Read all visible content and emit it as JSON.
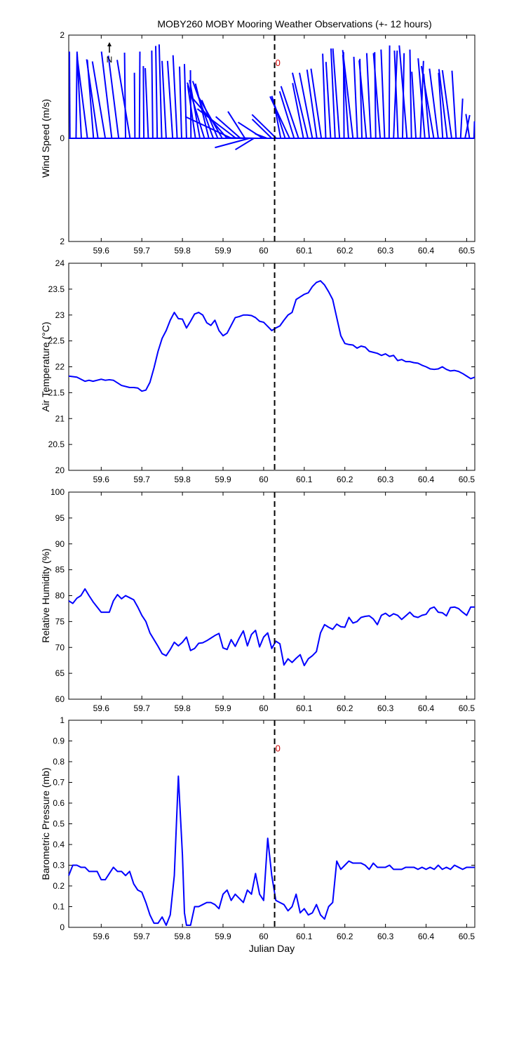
{
  "title": "MOBY260 MOBY Mooring Weather Observations (+- 12 hours)",
  "north_label": "N",
  "colors": {
    "series": "#0000ff",
    "axis": "#000000",
    "marker_text": "#cc0000",
    "cursor": "#000000"
  },
  "chart_data": [
    {
      "id": "wind",
      "type": "quiver",
      "xlabel": "",
      "ylabel": "Wind Speed (m/s)",
      "xlim": [
        59.52,
        60.52
      ],
      "ylim": [
        -2,
        2
      ],
      "yticks": [
        {
          "value": 2,
          "label": "2"
        },
        {
          "value": 0,
          "label": "0"
        },
        {
          "value": -2,
          "label": "2"
        }
      ],
      "marker_label": "0",
      "marker_pos": {
        "x": 60.035,
        "y": 1.4
      },
      "t": [
        59.523,
        59.538,
        59.551,
        59.566,
        59.581,
        59.592,
        59.61,
        59.626,
        59.643,
        59.66,
        59.671,
        59.683,
        59.694,
        59.705,
        59.716,
        59.727,
        59.738,
        59.749,
        59.76,
        59.776,
        59.787,
        59.798,
        59.81,
        59.821,
        59.832,
        59.843,
        59.854,
        59.865,
        59.876,
        59.887,
        59.898,
        59.91,
        59.921,
        59.932,
        59.943,
        59.954,
        59.965,
        59.976,
        59.987,
        59.998,
        60.009,
        60.02,
        60.031,
        60.042,
        60.053,
        60.064,
        60.075,
        60.086,
        60.098,
        60.109,
        60.12,
        60.131,
        60.142,
        60.153,
        60.165,
        60.176,
        60.187,
        60.198,
        60.209,
        60.22,
        60.231,
        60.242,
        60.253,
        60.264,
        60.276,
        60.287,
        60.298,
        60.309,
        60.32,
        60.331,
        60.342,
        60.353,
        60.364,
        60.375,
        60.386,
        60.397,
        60.408,
        60.419,
        60.43,
        60.441,
        60.452,
        60.463,
        60.474,
        60.485,
        60.496,
        60.507,
        60.518
      ],
      "u": [
        -0.01,
        0.02,
        -0.08,
        -0.2,
        -0.12,
        -0.22,
        -0.25,
        -0.2,
        -0.2,
        -0.02,
        -0.25,
        -0.01,
        0.01,
        -0.01,
        -0.06,
        -0.02,
        -0.03,
        -0.05,
        -0.08,
        -0.1,
        -0.08,
        -0.04,
        -0.04,
        -0.01,
        -0.15,
        -0.2,
        -0.33,
        -0.26,
        -0.4,
        -0.31,
        -0.47,
        -0.7,
        -0.9,
        -0.75,
        -0.48,
        -0.33,
        -0.67,
        -0.36,
        -0.61,
        -0.48,
        -0.24,
        -0.38,
        -0.47,
        -0.14,
        -0.26,
        -0.38,
        -0.28,
        -0.34,
        -0.21,
        -0.3,
        -0.25,
        -0.19,
        -0.2,
        -0.06,
        -0.09,
        -0.08,
        -0.13,
        -0.01,
        -0.11,
        -0.2,
        -0.07,
        -0.04,
        -0.14,
        -0.08,
        -0.02,
        -0.13,
        -0.07,
        0.01,
        0.07,
        -0.07,
        0.03,
        -0.15,
        -0.03,
        -0.08,
        0.06,
        -0.13,
        -0.11,
        -0.24,
        -0.17,
        -0.08,
        -0.16,
        -0.18,
        -0.08,
        0.04,
        0.09,
        -0.07,
        0.01
      ],
      "v": [
        1.68,
        1.68,
        1.64,
        1.59,
        1.52,
        1.53,
        1.49,
        1.68,
        1.6,
        1.66,
        1.52,
        1.27,
        1.68,
        1.4,
        1.36,
        1.7,
        1.79,
        1.82,
        1.5,
        1.5,
        1.61,
        1.39,
        1.44,
        1.32,
        1.03,
        1.13,
        1.08,
        1.06,
        1.11,
        0.74,
        0.82,
        0.81,
        0.42,
        0.57,
        0.42,
        0.52,
        -0.18,
        -0.22,
        0.01,
        0.31,
        0.09,
        0.37,
        0.46,
        0.74,
        0.82,
        0.81,
        0.91,
        1.01,
        1.07,
        1.27,
        1.27,
        1.33,
        1.35,
        1.64,
        1.48,
        1.74,
        1.74,
        1.67,
        1.62,
        1.71,
        1.58,
        1.54,
        1.51,
        1.65,
        1.67,
        1.65,
        1.72,
        1.8,
        1.7,
        1.7,
        1.65,
        1.8,
        1.72,
        1.29,
        1.5,
        1.55,
        1.25,
        1.4,
        1.35,
        1.27,
        1.34,
        1.32,
        1.31,
        0.77,
        0.45,
        0.47,
        0.33
      ]
    },
    {
      "id": "air",
      "type": "line",
      "xlabel": "",
      "ylabel": "Air Temperature (°C)",
      "xlim": [
        59.52,
        60.52
      ],
      "ylim": [
        20,
        24
      ],
      "ytick_labels": [
        "20",
        "20.5",
        "21",
        "21.5",
        "22",
        "22.5",
        "23",
        "23.5",
        "24"
      ],
      "x": [
        59.52,
        59.54,
        59.56,
        59.57,
        59.58,
        59.6,
        59.61,
        59.62,
        59.63,
        59.65,
        59.67,
        59.68,
        59.69,
        59.7,
        59.71,
        59.72,
        59.73,
        59.74,
        59.75,
        59.76,
        59.77,
        59.78,
        59.79,
        59.8,
        59.81,
        59.82,
        59.83,
        59.84,
        59.85,
        59.86,
        59.87,
        59.88,
        59.89,
        59.9,
        59.91,
        59.92,
        59.93,
        59.94,
        59.95,
        59.96,
        59.97,
        59.98,
        59.99,
        60,
        60.01,
        60.02,
        60.03,
        60.04,
        60.05,
        60.06,
        60.07,
        60.08,
        60.09,
        60.1,
        60.11,
        60.12,
        60.13,
        60.14,
        60.15,
        60.16,
        60.17,
        60.18,
        60.19,
        60.2,
        60.21,
        60.22,
        60.23,
        60.24,
        60.25,
        60.26,
        60.27,
        60.28,
        60.29,
        60.3,
        60.31,
        60.32,
        60.33,
        60.34,
        60.35,
        60.36,
        60.37,
        60.38,
        60.39,
        60.4,
        60.41,
        60.42,
        60.43,
        60.44,
        60.45,
        60.46,
        60.47,
        60.48,
        60.49,
        60.5,
        60.51,
        60.52
      ],
      "y": [
        21.82,
        21.8,
        21.72,
        21.74,
        21.72,
        21.76,
        21.74,
        21.75,
        21.74,
        21.64,
        21.6,
        21.6,
        21.59,
        21.53,
        21.55,
        21.7,
        21.98,
        22.3,
        22.55,
        22.7,
        22.9,
        23.05,
        22.93,
        22.92,
        22.75,
        22.88,
        23.02,
        23.05,
        23.0,
        22.85,
        22.8,
        22.9,
        22.7,
        22.6,
        22.65,
        22.8,
        22.95,
        22.97,
        23.0,
        23.0,
        22.99,
        22.95,
        22.88,
        22.86,
        22.78,
        22.7,
        22.75,
        22.79,
        22.9,
        23.0,
        23.05,
        23.3,
        23.35,
        23.4,
        23.43,
        23.55,
        23.63,
        23.66,
        23.58,
        23.45,
        23.3,
        22.95,
        22.6,
        22.45,
        22.43,
        22.42,
        22.36,
        22.4,
        22.38,
        22.3,
        22.28,
        22.26,
        22.22,
        22.25,
        22.2,
        22.22,
        22.12,
        22.14,
        22.1,
        22.1,
        22.08,
        22.07,
        22.03,
        22.0,
        21.96,
        21.95,
        21.96,
        22.0,
        21.95,
        21.92,
        21.93,
        21.91,
        21.87,
        21.82,
        21.77,
        21.8
      ]
    },
    {
      "id": "rh",
      "type": "line",
      "xlabel": "",
      "ylabel": "Relative Humidity (%)",
      "xlim": [
        59.52,
        60.52
      ],
      "ylim": [
        60,
        100
      ],
      "ytick_labels": [
        "60",
        "65",
        "70",
        "75",
        "80",
        "85",
        "90",
        "95",
        "100"
      ],
      "x": [
        59.52,
        59.53,
        59.54,
        59.55,
        59.56,
        59.57,
        59.58,
        59.6,
        59.62,
        59.63,
        59.64,
        59.65,
        59.66,
        59.67,
        59.68,
        59.69,
        59.7,
        59.71,
        59.72,
        59.73,
        59.74,
        59.75,
        59.76,
        59.77,
        59.78,
        59.79,
        59.8,
        59.81,
        59.82,
        59.83,
        59.84,
        59.85,
        59.86,
        59.87,
        59.88,
        59.89,
        59.9,
        59.91,
        59.92,
        59.93,
        59.94,
        59.95,
        59.96,
        59.97,
        59.98,
        59.99,
        60,
        60.01,
        60.02,
        60.03,
        60.04,
        60.05,
        60.06,
        60.07,
        60.08,
        60.09,
        60.1,
        60.11,
        60.12,
        60.13,
        60.14,
        60.15,
        60.16,
        60.17,
        60.18,
        60.19,
        60.2,
        60.21,
        60.22,
        60.23,
        60.24,
        60.25,
        60.26,
        60.27,
        60.28,
        60.29,
        60.3,
        60.31,
        60.32,
        60.33,
        60.34,
        60.35,
        60.36,
        60.37,
        60.38,
        60.39,
        60.4,
        60.41,
        60.42,
        60.43,
        60.44,
        60.45,
        60.46,
        60.47,
        60.48,
        60.49,
        60.5,
        60.51,
        60.52
      ],
      "y": [
        79.0,
        78.5,
        79.5,
        80.0,
        81.3,
        80.0,
        78.8,
        76.8,
        76.8,
        79.0,
        80.2,
        79.4,
        80.0,
        79.6,
        79.2,
        77.8,
        76.2,
        75.0,
        72.8,
        71.5,
        70.2,
        68.8,
        68.4,
        69.6,
        71.0,
        70.3,
        71.0,
        72.0,
        69.4,
        69.8,
        70.8,
        70.9,
        71.3,
        71.8,
        72.3,
        72.7,
        69.9,
        69.6,
        71.5,
        70.2,
        71.8,
        73.2,
        70.3,
        72.5,
        73.3,
        70.1,
        72.0,
        72.8,
        69.8,
        71.2,
        70.7,
        66.6,
        67.8,
        67.1,
        67.9,
        68.6,
        66.5,
        67.8,
        68.4,
        69.2,
        72.8,
        74.4,
        73.9,
        73.5,
        74.5,
        74.0,
        73.9,
        75.8,
        74.7,
        75.0,
        75.8,
        76.0,
        76.1,
        75.5,
        74.4,
        76.2,
        76.6,
        76.0,
        76.5,
        76.2,
        75.4,
        76.1,
        76.8,
        76.0,
        75.8,
        76.2,
        76.4,
        77.5,
        77.8,
        76.8,
        76.7,
        76.1,
        77.7,
        77.8,
        77.5,
        76.8,
        76.2,
        77.8,
        77.8
      ]
    },
    {
      "id": "bp",
      "type": "line",
      "xlabel": "Julian Day",
      "ylabel": "Barometric Pressure (mb)",
      "xlim": [
        59.52,
        60.52
      ],
      "ylim": [
        0,
        1
      ],
      "ytick_labels": [
        "0",
        "0.1",
        "0.2",
        "0.3",
        "0.4",
        "0.5",
        "0.6",
        "0.7",
        "0.8",
        "0.9",
        "1"
      ],
      "marker_label": "0",
      "marker_pos": {
        "x": 60.035,
        "y": 0.85
      },
      "x": [
        59.52,
        59.53,
        59.54,
        59.55,
        59.56,
        59.57,
        59.58,
        59.59,
        59.6,
        59.61,
        59.62,
        59.63,
        59.64,
        59.65,
        59.66,
        59.67,
        59.68,
        59.69,
        59.7,
        59.71,
        59.72,
        59.73,
        59.74,
        59.75,
        59.76,
        59.77,
        59.78,
        59.79,
        59.8,
        59.805,
        59.81,
        59.82,
        59.83,
        59.84,
        59.85,
        59.86,
        59.87,
        59.88,
        59.89,
        59.9,
        59.91,
        59.92,
        59.93,
        59.94,
        59.95,
        59.96,
        59.97,
        59.98,
        59.99,
        60,
        60.01,
        60.02,
        60.03,
        60.04,
        60.05,
        60.06,
        60.07,
        60.08,
        60.09,
        60.1,
        60.11,
        60.12,
        60.13,
        60.14,
        60.15,
        60.16,
        60.17,
        60.18,
        60.19,
        60.2,
        60.21,
        60.22,
        60.23,
        60.24,
        60.25,
        60.26,
        60.27,
        60.28,
        60.29,
        60.3,
        60.31,
        60.32,
        60.33,
        60.34,
        60.35,
        60.36,
        60.37,
        60.38,
        60.39,
        60.4,
        60.41,
        60.42,
        60.43,
        60.44,
        60.45,
        60.46,
        60.47,
        60.48,
        60.49,
        60.5,
        60.51,
        60.52
      ],
      "y": [
        0.25,
        0.3,
        0.3,
        0.29,
        0.29,
        0.27,
        0.27,
        0.27,
        0.23,
        0.23,
        0.26,
        0.29,
        0.27,
        0.27,
        0.25,
        0.27,
        0.21,
        0.18,
        0.17,
        0.12,
        0.06,
        0.02,
        0.02,
        0.05,
        0.01,
        0.06,
        0.25,
        0.73,
        0.35,
        0.07,
        0.01,
        0.01,
        0.1,
        0.1,
        0.11,
        0.12,
        0.12,
        0.11,
        0.09,
        0.16,
        0.18,
        0.13,
        0.16,
        0.14,
        0.12,
        0.18,
        0.16,
        0.26,
        0.16,
        0.13,
        0.43,
        0.25,
        0.13,
        0.12,
        0.11,
        0.08,
        0.1,
        0.16,
        0.07,
        0.09,
        0.06,
        0.07,
        0.11,
        0.06,
        0.04,
        0.1,
        0.12,
        0.32,
        0.28,
        0.3,
        0.32,
        0.31,
        0.31,
        0.31,
        0.3,
        0.28,
        0.31,
        0.29,
        0.29,
        0.29,
        0.3,
        0.28,
        0.28,
        0.28,
        0.29,
        0.29,
        0.29,
        0.28,
        0.29,
        0.28,
        0.29,
        0.28,
        0.3,
        0.28,
        0.29,
        0.28,
        0.3,
        0.29,
        0.28,
        0.29,
        0.29,
        0.29
      ]
    }
  ],
  "xtick_labels": [
    "59.6",
    "59.7",
    "59.8",
    "59.9",
    "60",
    "60.1",
    "60.2",
    "60.3",
    "60.4",
    "60.5"
  ],
  "xtick_values": [
    59.6,
    59.7,
    59.8,
    59.9,
    60.0,
    60.1,
    60.2,
    60.3,
    60.4,
    60.5
  ],
  "cursor_day": 60.027
}
